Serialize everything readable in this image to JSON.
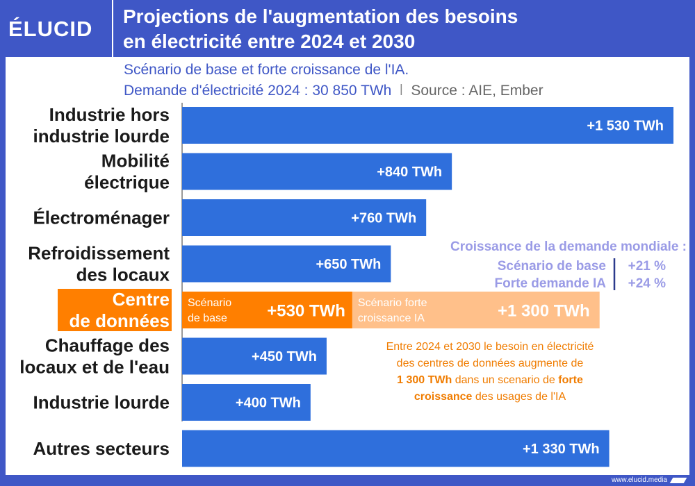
{
  "brand": {
    "logo": "ÉLUCID",
    "footer_url": "www.elucid.media"
  },
  "colors": {
    "bar": "#2f6fdc",
    "highlight": "#ff7f00",
    "highlight_light": "#ffc08a",
    "subtitle": "#3f57c6",
    "source": "#666666",
    "side_note": "#9a9be6",
    "annotation": "#f07c00"
  },
  "chart_data": {
    "type": "bar",
    "orientation": "horizontal",
    "title_lines": [
      "Projections de l'augmentation des besoins",
      "en électricité entre 2024 et 2030"
    ],
    "subtitle_lines": [
      "Scénario de base et forte croissance de l'IA.",
      "Demande d'électricité 2024 : 30 850 TWh"
    ],
    "source": "Source : AIE, Ember",
    "xlim": [
      0,
      1600
    ],
    "grid": false,
    "categories": [
      {
        "label_lines": [
          "Industrie hors",
          "industrie lourde"
        ],
        "value": 1530,
        "value_label": "+1 530 TWh"
      },
      {
        "label_lines": [
          "Mobilité",
          "électrique"
        ],
        "value": 840,
        "value_label": "+840 TWh"
      },
      {
        "label_lines": [
          "Électroménager"
        ],
        "value": 760,
        "value_label": "+760 TWh"
      },
      {
        "label_lines": [
          "Refroidissement",
          "des locaux"
        ],
        "value": 650,
        "value_label": "+650 TWh"
      },
      {
        "label_lines": [
          "Centre",
          "de données"
        ],
        "highlight": true,
        "value": 530,
        "value_label": "+530 TWh",
        "scenario_label_lines": [
          "Scénario",
          "de base"
        ],
        "high_value": 1300,
        "high_value_label": "+1 300 TWh",
        "high_scenario_label_lines": [
          "Scénario forte",
          "croissance IA"
        ]
      },
      {
        "label_lines": [
          "Chauffage des",
          "locaux et de l'eau"
        ],
        "value": 450,
        "value_label": "+450 TWh"
      },
      {
        "label_lines": [
          "Industrie lourde"
        ],
        "value": 400,
        "value_label": "+400 TWh"
      },
      {
        "label_lines": [
          "Autres secteurs"
        ],
        "value": 1330,
        "value_label": "+1 330 TWh"
      }
    ],
    "growth_box": {
      "title": "Croissance de la demande mondiale :",
      "rows": [
        {
          "label": "Scénario de base",
          "value": "+21 %"
        },
        {
          "label": "Forte demande IA",
          "value": "+24 %"
        }
      ]
    },
    "annotation": {
      "lines": [
        [
          {
            "text": "Entre 2024 et 2030 le besoin en électricité",
            "bold": false
          }
        ],
        [
          {
            "text": "des centres de données augmente de",
            "bold": false
          }
        ],
        [
          {
            "text": "1 300 TWh",
            "bold": true
          },
          {
            "text": " dans un scenario de ",
            "bold": false
          },
          {
            "text": "forte",
            "bold": true
          }
        ],
        [
          {
            "text": "croissance",
            "bold": true
          },
          {
            "text": " des usages de l'IA",
            "bold": false
          }
        ]
      ]
    }
  }
}
